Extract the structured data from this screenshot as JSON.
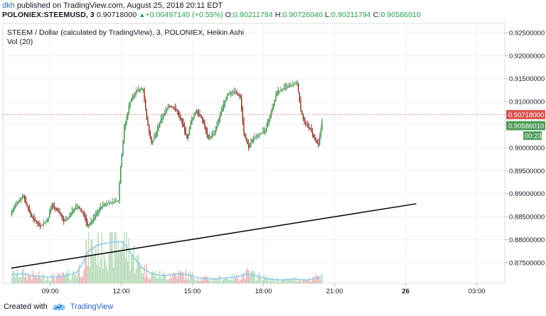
{
  "header": {
    "user": "dkh",
    "published": " published on TradingView.com, August 25, 2018 20:11 EDT",
    "symbol": "POLONIEX:STEEMUSD, 3",
    "price": "0.90718000",
    "change": "+0.00497140 (+0.55%)",
    "o_label": "O:",
    "o_value": "0.90211794",
    "h_label": "H:",
    "h_value": "0.90726040",
    "l_label": "L:",
    "l_value": "0.90211794",
    "c_label": "C:",
    "c_value": "0.90586010"
  },
  "legend": {
    "title": "STEEM / Dollar (calculated by TradingView), 3, POLONIEX, Heikin Ashi",
    "volume": "Vol (20)"
  },
  "footer": {
    "created_with": "Created with",
    "brand": "TradingView",
    "logo_icon": "tradingview-cloud-icon"
  },
  "price_tags": {
    "last": "0.90718000",
    "close": "0.90586010",
    "countdown": "00:23"
  },
  "colors": {
    "up": "#3a8f4a",
    "down": "#8c2b1f",
    "wick_gray": "#9e9e9e",
    "vol_up": "#b7dbb9",
    "vol_down": "#e6b6b6",
    "vol_ma": "#8ec9ee",
    "trendline": "#000000",
    "last_tag": "#d9534f",
    "close_tag": "#4f9c5a",
    "grid": "#eef0f3"
  },
  "chart_data": {
    "type": "candlestick",
    "style": "Heikin Ashi",
    "title": "STEEM / Dollar (calculated by TradingView), 3, POLONIEX, Heikin Ashi",
    "x_ticks": [
      "09:00",
      "12:00",
      "15:00",
      "18:00",
      "21:00",
      "26",
      "03:00"
    ],
    "y_ticks": [
      "0.92500000",
      "0.92000000",
      "0.91500000",
      "0.91000000",
      "0.90500000",
      "0.90000000",
      "0.89500000",
      "0.89000000",
      "0.88500000",
      "0.88000000",
      "0.87500000"
    ],
    "ylim": [
      0.8705,
      0.927
    ],
    "grid": true,
    "price_path": [
      [
        7.35,
        0.8855
      ],
      [
        7.7,
        0.8885
      ],
      [
        7.9,
        0.8895
      ],
      [
        8.1,
        0.8865
      ],
      [
        8.3,
        0.8845
      ],
      [
        8.6,
        0.883
      ],
      [
        8.9,
        0.884
      ],
      [
        9.1,
        0.8875
      ],
      [
        9.4,
        0.886
      ],
      [
        9.6,
        0.884
      ],
      [
        9.8,
        0.8848
      ],
      [
        10.0,
        0.8865
      ],
      [
        10.2,
        0.887
      ],
      [
        10.4,
        0.8858
      ],
      [
        10.6,
        0.883
      ],
      [
        10.8,
        0.884
      ],
      [
        11.0,
        0.8858
      ],
      [
        11.2,
        0.8872
      ],
      [
        11.4,
        0.8878
      ],
      [
        11.6,
        0.888
      ],
      [
        11.9,
        0.8885
      ],
      [
        12.0,
        0.896
      ],
      [
        12.15,
        0.904
      ],
      [
        12.4,
        0.91
      ],
      [
        12.7,
        0.9125
      ],
      [
        12.95,
        0.9128
      ],
      [
        13.1,
        0.906
      ],
      [
        13.3,
        0.901
      ],
      [
        13.5,
        0.903
      ],
      [
        13.7,
        0.906
      ],
      [
        14.0,
        0.909
      ],
      [
        14.3,
        0.9085
      ],
      [
        14.55,
        0.906
      ],
      [
        14.8,
        0.902
      ],
      [
        15.0,
        0.906
      ],
      [
        15.2,
        0.908
      ],
      [
        15.45,
        0.906
      ],
      [
        15.7,
        0.902
      ],
      [
        15.95,
        0.903
      ],
      [
        16.2,
        0.907
      ],
      [
        16.5,
        0.9115
      ],
      [
        16.8,
        0.9122
      ],
      [
        17.05,
        0.911
      ],
      [
        17.2,
        0.903
      ],
      [
        17.4,
        0.9
      ],
      [
        17.6,
        0.902
      ],
      [
        17.85,
        0.903
      ],
      [
        18.1,
        0.9035
      ],
      [
        18.3,
        0.907
      ],
      [
        18.6,
        0.912
      ],
      [
        18.9,
        0.9128
      ],
      [
        19.2,
        0.9135
      ],
      [
        19.45,
        0.914
      ],
      [
        19.6,
        0.908
      ],
      [
        19.8,
        0.905
      ],
      [
        20.0,
        0.904
      ],
      [
        20.2,
        0.9015
      ],
      [
        20.35,
        0.9005
      ],
      [
        20.5,
        0.90586
      ]
    ],
    "volume_ma_path": [
      [
        7.35,
        0.8
      ],
      [
        7.8,
        0.9
      ],
      [
        8.3,
        0.7
      ],
      [
        8.8,
        0.6
      ],
      [
        9.3,
        0.6
      ],
      [
        9.8,
        0.8
      ],
      [
        10.1,
        1.0
      ],
      [
        10.3,
        1.6
      ],
      [
        10.6,
        3.0
      ],
      [
        11.0,
        3.6
      ],
      [
        11.4,
        3.8
      ],
      [
        11.8,
        3.9
      ],
      [
        12.05,
        3.9
      ],
      [
        12.3,
        3.2
      ],
      [
        12.6,
        2.2
      ],
      [
        12.9,
        1.4
      ],
      [
        13.3,
        0.9
      ],
      [
        13.8,
        0.7
      ],
      [
        14.3,
        0.9
      ],
      [
        14.8,
        0.8
      ],
      [
        15.3,
        0.5
      ],
      [
        15.9,
        0.4
      ],
      [
        16.4,
        0.5
      ],
      [
        16.9,
        0.6
      ],
      [
        17.3,
        0.9
      ],
      [
        17.7,
        0.7
      ],
      [
        18.2,
        0.4
      ],
      [
        18.8,
        0.3
      ],
      [
        19.3,
        0.4
      ],
      [
        19.8,
        0.3
      ],
      [
        20.2,
        0.5
      ],
      [
        20.5,
        0.6
      ]
    ],
    "volume_max": 5.0,
    "trendline": [
      [
        7.35,
        0.8738
      ],
      [
        24.45,
        0.8878
      ]
    ],
    "last_price": 0.90718,
    "close_price": 0.90586
  }
}
